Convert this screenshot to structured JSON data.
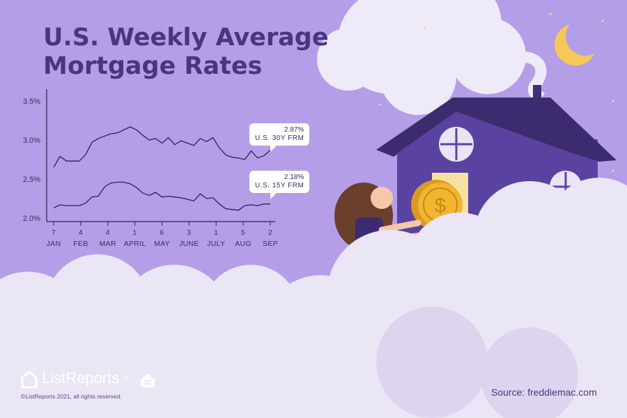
{
  "title_line1": "U.S. Weekly Average",
  "title_line2": "Mortgage Rates",
  "callouts": {
    "frm30": {
      "value": "2.87%",
      "label": "U.S. 30Y FRM"
    },
    "frm15": {
      "value": "2.18%",
      "label": "U.S. 15Y FRM"
    }
  },
  "brand": {
    "name": "ListReports",
    "reg": "®",
    "copyright": "©ListReports 2021, all rights reserved."
  },
  "source": "Source: freddiemac.com",
  "colors": {
    "background": "#b49ee8",
    "line": "#2f2150",
    "title": "#4a357e",
    "cloud": "#ece8f6",
    "house": "#5b43a3",
    "coin": "#f2b531",
    "moon": "#f6c858"
  },
  "chart_data": {
    "type": "line",
    "title": "U.S. Weekly Average Mortgage Rates",
    "ylim": [
      2.0,
      3.5
    ],
    "yticks": [
      "2.0%",
      "2.5%",
      "3.0%",
      "3.5%"
    ],
    "yticks_values": [
      2.0,
      2.5,
      3.0,
      3.5
    ],
    "xticks": [
      {
        "day": "7",
        "month": "JAN"
      },
      {
        "day": "4",
        "month": "FEB"
      },
      {
        "day": "4",
        "month": "MAR"
      },
      {
        "day": "1",
        "month": "APRIL"
      },
      {
        "day": "6",
        "month": "MAY"
      },
      {
        "day": "3",
        "month": "JUNE"
      },
      {
        "day": "1",
        "month": "JULY"
      },
      {
        "day": "5",
        "month": "AUG"
      },
      {
        "day": "2",
        "month": "SEP"
      }
    ],
    "series": [
      {
        "name": "U.S. 30Y FRM",
        "values": [
          2.65,
          2.79,
          2.73,
          2.73,
          2.73,
          2.81,
          2.97,
          3.02,
          3.05,
          3.08,
          3.09,
          3.13,
          3.17,
          3.13,
          3.06,
          3.0,
          3.02,
          2.96,
          3.03,
          2.94,
          2.99,
          2.96,
          2.93,
          3.02,
          2.98,
          3.03,
          2.9,
          2.81,
          2.78,
          2.77,
          2.75,
          2.86,
          2.77,
          2.8,
          2.87
        ]
      },
      {
        "name": "U.S. 15Y FRM",
        "values": [
          2.13,
          2.17,
          2.16,
          2.16,
          2.16,
          2.19,
          2.27,
          2.28,
          2.4,
          2.45,
          2.46,
          2.46,
          2.44,
          2.39,
          2.32,
          2.29,
          2.33,
          2.27,
          2.28,
          2.27,
          2.26,
          2.24,
          2.22,
          2.31,
          2.25,
          2.26,
          2.18,
          2.12,
          2.11,
          2.1,
          2.16,
          2.17,
          2.16,
          2.18,
          2.18
        ]
      }
    ]
  }
}
